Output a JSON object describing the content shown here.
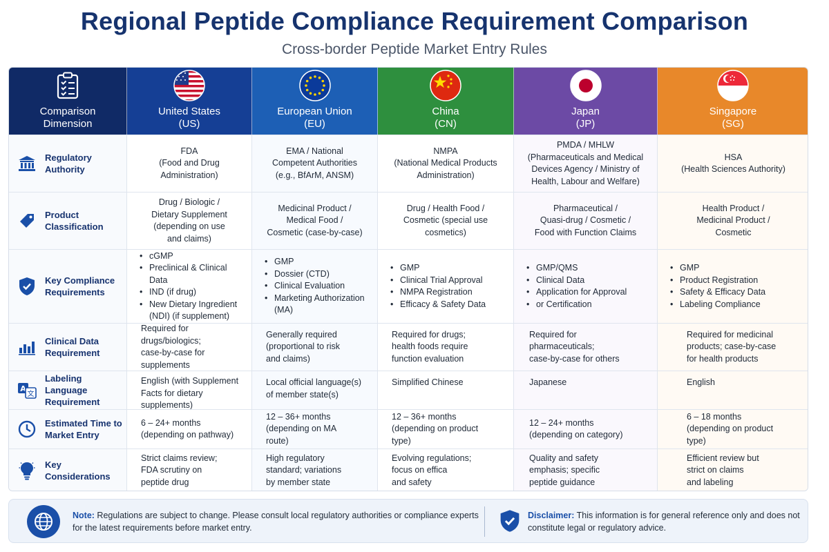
{
  "title": "Regional Peptide Compliance Requirement Comparison",
  "subtitle": "Cross-border Peptide Market Entry Rules",
  "header": {
    "dimension_label_1": "Comparison",
    "dimension_label_2": "Dimension",
    "dimension_icon": "clipboard-checklist-icon",
    "regions": [
      {
        "name": "United States",
        "code": "(US)",
        "flag": "us-flag-icon",
        "color": "#153f95"
      },
      {
        "name": "European Union",
        "code": "(EU)",
        "flag": "eu-flag-icon",
        "color": "#1d5fb5"
      },
      {
        "name": "China",
        "code": "(CN)",
        "flag": "china-flag-icon",
        "color": "#2e8f3e"
      },
      {
        "name": "Japan",
        "code": "(JP)",
        "flag": "japan-flag-icon",
        "color": "#6c4aa5"
      },
      {
        "name": "Singapore",
        "code": "(SG)",
        "flag": "singapore-flag-icon",
        "color": "#e8882a"
      }
    ]
  },
  "rows": [
    {
      "label": "Regulatory Authority",
      "icon": "bank-building-icon",
      "cells": [
        "FDA\n(Food and Drug\nAdministration)",
        "EMA / National\nCompetent Authorities\n(e.g., BfArM, ANSM)",
        "NMPA\n(National Medical Products\nAdministration)",
        "PMDA / MHLW\n(Pharmaceuticals and Medical\nDevices Agency / Ministry of\nHealth, Labour and Welfare)",
        "HSA\n(Health Sciences Authority)"
      ]
    },
    {
      "label": "Product Classification",
      "icon": "tag-icon",
      "cells": [
        "Drug / Biologic /\nDietary Supplement\n(depending on use\nand claims)",
        "Medicinal Product /\nMedical Food /\nCosmetic (case-by-case)",
        "Drug / Health Food /\nCosmetic (special use\ncosmetics)",
        "Pharmaceutical /\nQuasi-drug / Cosmetic /\nFood with Function Claims",
        "Health Product /\nMedicinal Product /\nCosmetic"
      ]
    },
    {
      "label": "Key Compliance Requirements",
      "icon": "shield-check-icon",
      "lists": [
        [
          "cGMP",
          "Preclinical & Clinical Data",
          "IND (if drug)",
          "New Dietary Ingredient (NDI) (if supplement)"
        ],
        [
          "GMP",
          "Dossier (CTD)",
          "Clinical Evaluation",
          "Marketing Authorization (MA)"
        ],
        [
          "GMP",
          "Clinical Trial Approval",
          "NMPA Registration",
          "Efficacy & Safety Data"
        ],
        [
          "GMP/QMS",
          "Clinical Data",
          "Application for Approval",
          "or Certification"
        ],
        [
          "GMP",
          "Product Registration",
          "Safety & Efficacy Data",
          "Labeling Compliance"
        ]
      ]
    },
    {
      "label": "Clinical Data Requirement",
      "icon": "bar-chart-icon",
      "cells": [
        "Required for drugs/biologics;\ncase-by-case for\nsupplements",
        "Generally required\n(proportional to risk\nand claims)",
        "Required for drugs;\nhealth foods require\nfunction evaluation",
        "Required for\npharmaceuticals;\ncase-by-case for others",
        "Required for medicinal\nproducts; case-by-case\nfor health products"
      ]
    },
    {
      "label": "Labeling Language Requirement",
      "icon": "translate-icon",
      "cells": [
        "English (with Supplement\nFacts for dietary\nsupplements)",
        "Local official language(s)\nof member state(s)",
        "Simplified Chinese",
        "Japanese",
        "English"
      ]
    },
    {
      "label": "Estimated Time to Market Entry",
      "icon": "clock-icon",
      "cells": [
        "6 – 24+ months\n(depending on pathway)",
        "12 – 36+ months\n(depending on MA\nroute)",
        "12 – 36+ months\n(depending on product\ntype)",
        "12 – 24+ months\n(depending on category)",
        "6 – 18 months\n(depending on product\ntype)"
      ]
    },
    {
      "label": "Key Considerations",
      "icon": "lightbulb-icon",
      "cells": [
        "Strict claims review;\nFDA scrutiny on\npeptide drug",
        "High regulatory\nstandard; variations\nby member state",
        "Evolving regulations;\nfocus on effica\nand safety",
        "Quality and safety\nemphasis; specific\npeptide guidance",
        "Efficient review but\nstrict on claims\nand labeling"
      ]
    }
  ],
  "footer": {
    "note_label": "Note:",
    "note_text": " Regulations are subject to change. Please consult local regulatory authorities or compliance experts for the latest requirements before market entry.",
    "note_icon": "globe-icon",
    "disclaimer_label": "Disclaimer:",
    "disclaimer_text": " This information is for general reference only and does not constitute legal or regulatory advice.",
    "disclaimer_icon": "shield-check-icon"
  }
}
